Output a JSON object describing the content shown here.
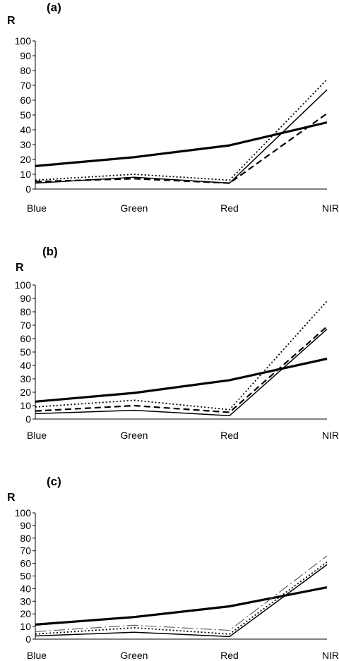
{
  "chart_data": [
    {
      "type": "line",
      "panel_label": "(a)",
      "ylabel": "R",
      "xlabel": "",
      "categories": [
        "Blue",
        "Green",
        "Red",
        "NIR"
      ],
      "ylim": [
        0,
        100
      ],
      "yticks": [
        "100",
        "90",
        "80",
        "70",
        "60",
        "50",
        "40",
        "30",
        "20",
        "10",
        "0"
      ],
      "series": [
        {
          "style": "thick-solid",
          "values": [
            15.5,
            21.5,
            29.5,
            45
          ]
        },
        {
          "style": "thin-solid",
          "values": [
            4,
            8,
            4,
            67
          ]
        },
        {
          "style": "dotted",
          "values": [
            6,
            10,
            6,
            74
          ]
        },
        {
          "style": "dashed",
          "values": [
            5,
            7,
            4,
            51
          ]
        }
      ]
    },
    {
      "type": "line",
      "panel_label": "(b)",
      "ylabel": "R",
      "xlabel": "",
      "categories": [
        "Blue",
        "Green",
        "Red",
        "NIR"
      ],
      "ylim": [
        0,
        100
      ],
      "yticks": [
        "100",
        "90",
        "80",
        "70",
        "60",
        "50",
        "40",
        "30",
        "20",
        "10",
        "0"
      ],
      "series": [
        {
          "style": "thick-solid",
          "values": [
            13,
            19.5,
            29,
            45
          ]
        },
        {
          "style": "thin-solid",
          "values": [
            4,
            6.5,
            2.5,
            67
          ]
        },
        {
          "style": "dotted",
          "values": [
            9,
            14,
            7,
            88
          ]
        },
        {
          "style": "dashed",
          "values": [
            6,
            10,
            5,
            69
          ]
        }
      ]
    },
    {
      "type": "line",
      "panel_label": "(c)",
      "ylabel": "R",
      "xlabel": "",
      "categories": [
        "Blue",
        "Green",
        "Red",
        "NIR"
      ],
      "ylim": [
        0,
        100
      ],
      "yticks": [
        "100",
        "90",
        "80",
        "70",
        "60",
        "50",
        "40",
        "30",
        "20",
        "10",
        "0"
      ],
      "series": [
        {
          "style": "thick-solid",
          "values": [
            11.5,
            17.5,
            26,
            41
          ]
        },
        {
          "style": "thin-solid",
          "values": [
            2.5,
            5.5,
            2,
            59
          ]
        },
        {
          "style": "dotted",
          "values": [
            4,
            9,
            4,
            61
          ]
        },
        {
          "style": "dash-dot",
          "values": [
            6,
            11,
            7,
            66
          ]
        }
      ]
    }
  ]
}
